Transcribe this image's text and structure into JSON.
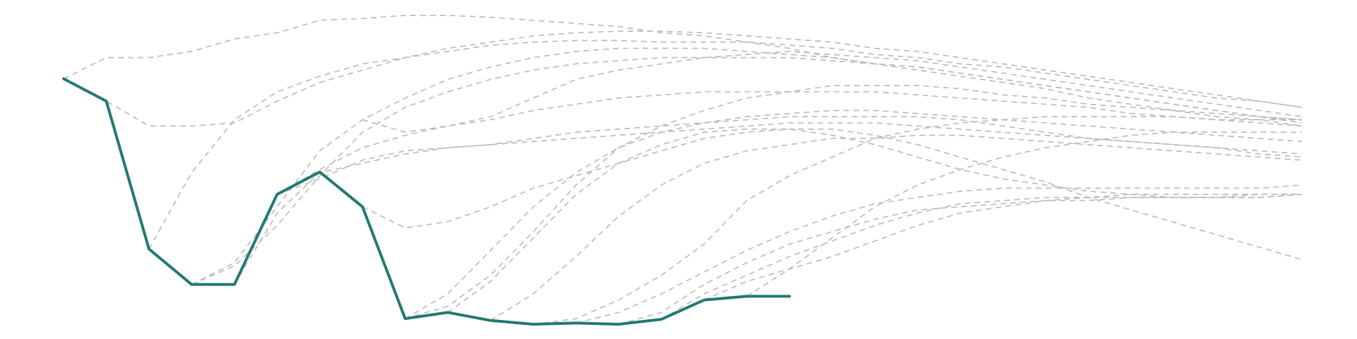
{
  "chart_data": {
    "type": "line",
    "title": "",
    "xlabel": "",
    "ylabel": "",
    "grid": false,
    "legend": "none",
    "xlim": [
      0,
      29
    ],
    "ylim": [
      0,
      100
    ],
    "colors": {
      "highlight": "#227a72",
      "context": "#b9b9b9"
    },
    "highlight": {
      "x": [
        0,
        1,
        2,
        3,
        4,
        5,
        6,
        7,
        8,
        9,
        10,
        11,
        12,
        13,
        14,
        15,
        16,
        17
      ],
      "values": [
        79.2,
        72.0,
        24.4,
        13.0,
        13.0,
        42.0,
        49.2,
        38.0,
        2.0,
        4.0,
        1.4,
        0.2,
        0.6,
        0.2,
        1.8,
        8.0,
        9.2,
        9.2
      ]
    },
    "series": [
      {
        "values": [
          79.2,
          86.0,
          86.0,
          88.0,
          92.0,
          94.0,
          98.0,
          98.6,
          99.6,
          99.6,
          99.0,
          98.0,
          97.0,
          96.0,
          94.0,
          93.0,
          91.0,
          89.0,
          86.0,
          84.0,
          82.0,
          80.0,
          78.0,
          76.0,
          73.0,
          71.0,
          69.0,
          67.0,
          66.0,
          64.0
        ]
      },
      {
        "values": [
          79.2,
          72.0,
          64.0,
          64.0,
          65.0,
          72.0,
          78.0,
          82.0,
          86.0,
          88.0,
          90.0,
          91.0,
          91.5,
          91.5,
          91.0,
          91.0,
          91.0,
          90.0,
          89.0,
          87.0,
          86.0,
          84.0,
          83.0,
          81.0,
          79.0,
          77.0,
          75.0,
          73.0,
          72.0,
          70.0
        ]
      },
      {
        "values": [
          null,
          null,
          24.4,
          49.0,
          66.0,
          75.0,
          80.0,
          84.0,
          86.0,
          89.0,
          91.0,
          93.0,
          94.0,
          94.5,
          94.5,
          94.0,
          93.0,
          92.0,
          91.0,
          89.0,
          88.0,
          86.0,
          84.0,
          82.0,
          80.0,
          78.0,
          76.0,
          74.0,
          72.0,
          70.0
        ]
      },
      {
        "values": [
          null,
          null,
          null,
          13.0,
          19.0,
          32.0,
          48.0,
          62.0,
          70.0,
          75.0,
          79.0,
          82.0,
          84.0,
          85.0,
          86.0,
          86.0,
          86.0,
          86.0,
          85.0,
          84.0,
          83.0,
          81.0,
          79.0,
          77.0,
          75.0,
          73.0,
          71.0,
          69.0,
          67.0,
          65.0
        ]
      },
      {
        "values": [
          null,
          null,
          null,
          13.0,
          20.0,
          38.0,
          56.0,
          66.0,
          73.0,
          79.0,
          83.0,
          86.0,
          88.0,
          89.0,
          89.0,
          89.0,
          88.0,
          87.0,
          86.0,
          84.0,
          83.0,
          81.0,
          79.0,
          77.0,
          75.0,
          73.0,
          71.0,
          69.0,
          67.0,
          66.0
        ]
      },
      {
        "values": [
          null,
          null,
          null,
          null,
          13.0,
          36.0,
          49.0,
          52.0,
          55.0,
          57.0,
          58.0,
          59.0,
          60.0,
          61.0,
          62.0,
          63.0,
          64.0,
          65.0,
          65.0,
          65.0,
          64.0,
          63.0,
          62.0,
          61.0,
          60.0,
          59.0,
          58.0,
          57.0,
          56.0,
          55.0
        ]
      },
      {
        "values": [
          null,
          null,
          null,
          null,
          null,
          42.0,
          50.0,
          57.0,
          61.0,
          64.0,
          66.0,
          69.0,
          71.0,
          73.0,
          74.0,
          75.0,
          75.0,
          75.0,
          75.0,
          75.0,
          74.0,
          73.0,
          72.0,
          71.0,
          70.0,
          68.0,
          67.0,
          66.0,
          65.0,
          64.0
        ]
      },
      {
        "values": [
          null,
          null,
          null,
          null,
          null,
          42.0,
          47.0,
          53.0,
          56.0,
          57.0,
          58.0,
          60.0,
          62.0,
          63.0,
          64.0,
          65.0,
          66.0,
          67.0,
          67.0,
          67.0,
          67.0,
          66.0,
          64.0,
          62.0,
          60.0,
          59.0,
          58.0,
          57.0,
          55.0,
          54.0
        ]
      },
      {
        "values": [
          null,
          null,
          null,
          null,
          null,
          null,
          null,
          38.0,
          31.2,
          33.2,
          38.0,
          44.0,
          48.0,
          52.0,
          56.0,
          60.0,
          62.0,
          63.0,
          63.0,
          61.0,
          58.0,
          54.0,
          50.0,
          46.0,
          41.0,
          37.0,
          33.0,
          29.0,
          25.0,
          21.0
        ]
      },
      {
        "values": [
          null,
          null,
          null,
          null,
          null,
          null,
          null,
          66.0,
          62.0,
          64.0,
          67.0,
          73.0,
          79.0,
          82.0,
          84.0,
          86.0,
          87.0,
          88.0,
          87.0,
          86.0,
          85.0,
          83.0,
          81.0,
          79.0,
          77.0,
          75.0,
          73.0,
          71.0,
          69.0,
          67.0
        ]
      },
      {
        "values": [
          null,
          null,
          null,
          null,
          null,
          null,
          null,
          null,
          2.0,
          6.0,
          16.0,
          30.0,
          45.0,
          57.0,
          64.0,
          69.0,
          73.0,
          75.0,
          77.0,
          77.0,
          77.0,
          76.0,
          74.0,
          73.0,
          71.0,
          70.0,
          69.0,
          68.0,
          67.0,
          66.0
        ]
      },
      {
        "values": [
          null,
          null,
          null,
          null,
          null,
          null,
          null,
          null,
          2.0,
          10.0,
          24.0,
          38.0,
          49.0,
          57.0,
          62.0,
          65.0,
          67.0,
          68.0,
          69.0,
          69.0,
          68.0,
          67.0,
          66.0,
          65.0,
          64.0,
          63.0,
          62.0,
          61.0,
          60.0,
          59.0
        ]
      },
      {
        "values": [
          null,
          null,
          null,
          null,
          null,
          null,
          null,
          null,
          null,
          4.0,
          14.0,
          28.0,
          42.0,
          52.0,
          58.0,
          62.0,
          63.0,
          63.0,
          61.0,
          58.0,
          54.0,
          50.0,
          47.0,
          45.0,
          43.0,
          42.0,
          41.0,
          41.0,
          41.0,
          42.0
        ]
      },
      {
        "values": [
          null,
          null,
          null,
          null,
          null,
          null,
          null,
          null,
          null,
          null,
          1.4,
          10.0,
          22.0,
          35.0,
          45.0,
          52.0,
          56.0,
          58.0,
          60.0,
          60.0,
          61.0,
          61.0,
          60.0,
          59.0,
          58.0,
          57.0,
          56.0,
          55.0,
          54.0,
          53.0
        ]
      },
      {
        "values": [
          null,
          null,
          null,
          null,
          null,
          null,
          null,
          null,
          null,
          null,
          null,
          0.2,
          2.0,
          8.0,
          16.0,
          26.0,
          40.0,
          48.0,
          54.0,
          60.0,
          63.0,
          65.0,
          66.0,
          67.0,
          67.0,
          67.0,
          67.0,
          66.0,
          66.0,
          66.0
        ]
      },
      {
        "values": [
          null,
          null,
          null,
          null,
          null,
          null,
          null,
          null,
          null,
          null,
          null,
          null,
          0.6,
          4.0,
          10.0,
          17.0,
          24.0,
          30.0,
          35.0,
          39.0,
          41.0,
          43.0,
          44.0,
          44.0,
          44.0,
          44.0,
          44.0,
          44.0,
          44.0,
          45.0
        ]
      },
      {
        "values": [
          null,
          null,
          null,
          null,
          null,
          null,
          null,
          null,
          null,
          null,
          null,
          null,
          null,
          0.2,
          4.0,
          13.0,
          20.0,
          26.0,
          30.0,
          34.0,
          37.0,
          38.0,
          39.0,
          40.0,
          40.0,
          41.0,
          41.0,
          41.0,
          41.0,
          42.0
        ]
      },
      {
        "values": [
          null,
          null,
          null,
          null,
          null,
          null,
          null,
          null,
          null,
          null,
          null,
          null,
          null,
          null,
          1.8,
          10.0,
          16.0,
          22.0,
          27.0,
          32.0,
          36.0,
          39.0,
          40.0,
          41.0,
          41.0,
          41.0,
          41.0,
          41.0,
          42.0,
          42.0
        ]
      },
      {
        "values": [
          null,
          null,
          null,
          null,
          null,
          null,
          null,
          null,
          null,
          null,
          null,
          null,
          null,
          null,
          null,
          8.0,
          14.0,
          18.0,
          22.0,
          27.0,
          32.0,
          36.0,
          38.0,
          40.0,
          41.0,
          42.0,
          42.0,
          42.0,
          42.0,
          42.0
        ]
      },
      {
        "values": [
          null,
          null,
          null,
          null,
          null,
          null,
          null,
          null,
          null,
          null,
          null,
          null,
          null,
          null,
          null,
          null,
          9.2,
          18.0,
          28.0,
          38.0,
          45.0,
          50.0,
          54.0,
          57.0,
          59.0,
          61.0,
          62.0,
          62.0,
          62.0,
          62.0
        ]
      }
    ]
  }
}
